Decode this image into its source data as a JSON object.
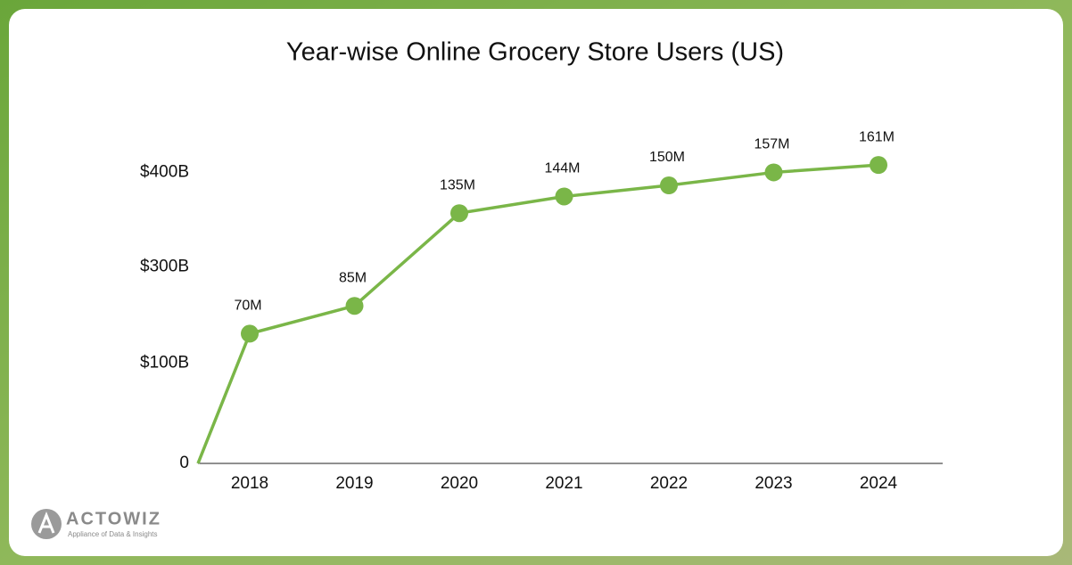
{
  "chart_data": {
    "type": "line",
    "title": "Year-wise Online Grocery Store Users (US)",
    "categories": [
      null,
      "2018",
      "2019",
      "2020",
      "2021",
      "2022",
      "2023",
      "2024"
    ],
    "values": [
      0,
      70,
      85,
      135,
      144,
      150,
      157,
      161
    ],
    "value_labels": [
      null,
      "70M",
      "85M",
      "135M",
      "144M",
      "150M",
      "157M",
      "161M"
    ],
    "color": "#7ab648",
    "ylim": [
      0,
      200
    ],
    "yticks": [
      0,
      {
        "value": 54,
        "label": "$100B"
      },
      {
        "value": 106,
        "label": "$300B"
      },
      {
        "value": 157,
        "label": "$400B"
      }
    ]
  },
  "logo": {
    "name": "ACTOWIZ",
    "tagline": "Appliance of Data & Insights"
  }
}
